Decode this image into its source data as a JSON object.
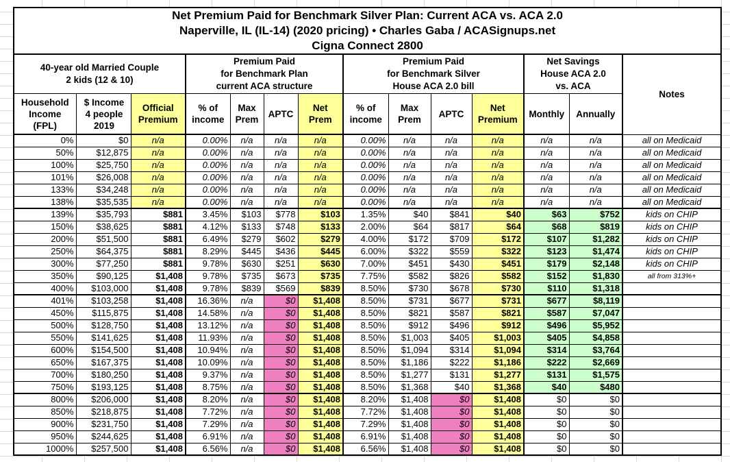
{
  "title": {
    "line1": "Net Premium Paid for Benchmark Silver Plan: Current ACA vs. ACA 2.0",
    "line2": "Naperville, IL (IL-14) (2020 pricing) • Charles Gaba / ACASignups.net",
    "line3": "Cigna Connect 2800"
  },
  "groups": {
    "household": "40-year old Married Couple\n2 kids (12 & 10)",
    "aca_current": "Premium Paid\nfor Benchmark Plan\ncurrent ACA structure",
    "aca_20": "Premium Paid\nfor Benchmark Silver\nHouse ACA 2.0 bill",
    "net_savings": "Net Savings\nHouse ACA 2.0\nvs. ACA",
    "notes": "Notes"
  },
  "columns": [
    "Household\nIncome\n(FPL)",
    "$ Income\n4 people\n2019",
    "Official\nPremium",
    "% of\nincome",
    "Max\nPrem",
    "APTC",
    "Net\nPrem",
    "% of\nincome",
    "Max\nPrem",
    "APTC",
    "Net\nPremium",
    "Monthly",
    "Annually"
  ],
  "colors": {
    "highlight_yellow": "#FFFF99",
    "zeroed_aptc_pink": "#F07FC2",
    "savings_green": "#CCFFCC",
    "household_peach": "#FAC090"
  },
  "rows": [
    {
      "kind": "medicaid",
      "cells": [
        "0%",
        "$0",
        "n/a",
        "0.00%",
        "n/a",
        "n/a",
        "n/a",
        "0.00%",
        "n/a",
        "n/a",
        "n/a",
        "n/a",
        "n/a",
        "all on Medicaid"
      ]
    },
    {
      "kind": "medicaid",
      "cells": [
        "50%",
        "$12,875",
        "n/a",
        "0.00%",
        "n/a",
        "n/a",
        "n/a",
        "0.00%",
        "n/a",
        "n/a",
        "n/a",
        "n/a",
        "n/a",
        "all on Medicaid"
      ]
    },
    {
      "kind": "medicaid",
      "cells": [
        "100%",
        "$25,750",
        "n/a",
        "0.00%",
        "n/a",
        "n/a",
        "n/a",
        "0.00%",
        "n/a",
        "n/a",
        "n/a",
        "n/a",
        "n/a",
        "all on Medicaid"
      ]
    },
    {
      "kind": "medicaid",
      "cells": [
        "101%",
        "$26,008",
        "n/a",
        "0.00%",
        "n/a",
        "n/a",
        "n/a",
        "0.00%",
        "n/a",
        "n/a",
        "n/a",
        "n/a",
        "n/a",
        "all on Medicaid"
      ]
    },
    {
      "kind": "medicaid",
      "cells": [
        "133%",
        "$34,248",
        "n/a",
        "0.00%",
        "n/a",
        "n/a",
        "n/a",
        "0.00%",
        "n/a",
        "n/a",
        "n/a",
        "n/a",
        "n/a",
        "all on Medicaid"
      ]
    },
    {
      "kind": "medicaid",
      "cells": [
        "138%",
        "$35,535",
        "n/a",
        "0.00%",
        "n/a",
        "n/a",
        "n/a",
        "0.00%",
        "n/a",
        "n/a",
        "n/a",
        "n/a",
        "n/a",
        "all on Medicaid"
      ]
    },
    {
      "kind": "subsidized",
      "cells": [
        "139%",
        "$35,793",
        "$881",
        "3.45%",
        "$103",
        "$778",
        "$103",
        "1.35%",
        "$40",
        "$841",
        "$40",
        "$63",
        "$752",
        "kids on CHIP"
      ]
    },
    {
      "kind": "subsidized",
      "cells": [
        "150%",
        "$38,625",
        "$881",
        "4.12%",
        "$133",
        "$748",
        "$133",
        "2.00%",
        "$64",
        "$817",
        "$64",
        "$68",
        "$819",
        "kids on CHIP"
      ]
    },
    {
      "kind": "subsidized",
      "cells": [
        "200%",
        "$51,500",
        "$881",
        "6.49%",
        "$279",
        "$602",
        "$279",
        "4.00%",
        "$172",
        "$709",
        "$172",
        "$107",
        "$1,282",
        "kids on CHIP"
      ]
    },
    {
      "kind": "subsidized",
      "cells": [
        "250%",
        "$64,375",
        "$881",
        "8.29%",
        "$445",
        "$436",
        "$445",
        "6.00%",
        "$322",
        "$559",
        "$322",
        "$123",
        "$1,474",
        "kids on CHIP"
      ]
    },
    {
      "kind": "subsidized",
      "cells": [
        "300%",
        "$77,250",
        "$881",
        "9.78%",
        "$630",
        "$251",
        "$630",
        "7.00%",
        "$451",
        "$430",
        "$451",
        "$179",
        "$2,148",
        "kids on CHIP"
      ]
    },
    {
      "kind": "subsidized",
      "cells": [
        "350%",
        "$90,125",
        "$1,408",
        "9.78%",
        "$735",
        "$673",
        "$735",
        "7.75%",
        "$582",
        "$826",
        "$582",
        "$152",
        "$1,830",
        "all from 313%+"
      ]
    },
    {
      "kind": "subsidized",
      "cells": [
        "400%",
        "$103,000",
        "$1,408",
        "9.78%",
        "$839",
        "$569",
        "$839",
        "8.50%",
        "$730",
        "$678",
        "$730",
        "$110",
        "$1,318",
        ""
      ]
    },
    {
      "kind": "cliff",
      "cells": [
        "401%",
        "$103,258",
        "$1,408",
        "16.36%",
        "n/a",
        "$0",
        "$1,408",
        "8.50%",
        "$731",
        "$677",
        "$731",
        "$677",
        "$8,119",
        ""
      ]
    },
    {
      "kind": "cliff",
      "cells": [
        "450%",
        "$115,875",
        "$1,408",
        "14.58%",
        "n/a",
        "$0",
        "$1,408",
        "8.50%",
        "$821",
        "$587",
        "$821",
        "$587",
        "$7,047",
        ""
      ]
    },
    {
      "kind": "cliff",
      "cells": [
        "500%",
        "$128,750",
        "$1,408",
        "13.12%",
        "n/a",
        "$0",
        "$1,408",
        "8.50%",
        "$912",
        "$496",
        "$912",
        "$496",
        "$5,952",
        ""
      ]
    },
    {
      "kind": "cliff",
      "cells": [
        "550%",
        "$141,625",
        "$1,408",
        "11.93%",
        "n/a",
        "$0",
        "$1,408",
        "8.50%",
        "$1,003",
        "$405",
        "$1,003",
        "$405",
        "$4,858",
        ""
      ]
    },
    {
      "kind": "cliff",
      "cells": [
        "600%",
        "$154,500",
        "$1,408",
        "10.94%",
        "n/a",
        "$0",
        "$1,408",
        "8.50%",
        "$1,094",
        "$314",
        "$1,094",
        "$314",
        "$3,764",
        ""
      ]
    },
    {
      "kind": "cliff",
      "cells": [
        "650%",
        "$167,375",
        "$1,408",
        "10.09%",
        "n/a",
        "$0",
        "$1,408",
        "8.50%",
        "$1,186",
        "$222",
        "$1,186",
        "$222",
        "$2,669",
        ""
      ]
    },
    {
      "kind": "cliff",
      "cells": [
        "700%",
        "$180,250",
        "$1,408",
        "9.37%",
        "n/a",
        "$0",
        "$1,408",
        "8.50%",
        "$1,277",
        "$131",
        "$1,277",
        "$131",
        "$1,575",
        ""
      ]
    },
    {
      "kind": "cliff",
      "cells": [
        "750%",
        "$193,125",
        "$1,408",
        "8.75%",
        "n/a",
        "$0",
        "$1,408",
        "8.50%",
        "$1,368",
        "$40",
        "$1,368",
        "$40",
        "$480",
        ""
      ]
    },
    {
      "kind": "high",
      "cells": [
        "800%",
        "$206,000",
        "$1,408",
        "8.20%",
        "n/a",
        "$0",
        "$1,408",
        "8.20%",
        "$1,408",
        "$0",
        "$1,408",
        "$0",
        "$0",
        ""
      ]
    },
    {
      "kind": "high",
      "cells": [
        "850%",
        "$218,875",
        "$1,408",
        "7.72%",
        "n/a",
        "$0",
        "$1,408",
        "7.72%",
        "$1,408",
        "$0",
        "$1,408",
        "$0",
        "$0",
        ""
      ]
    },
    {
      "kind": "high",
      "cells": [
        "900%",
        "$231,750",
        "$1,408",
        "7.29%",
        "n/a",
        "$0",
        "$1,408",
        "7.29%",
        "$1,408",
        "$0",
        "$1,408",
        "$0",
        "$0",
        ""
      ]
    },
    {
      "kind": "high",
      "cells": [
        "950%",
        "$244,625",
        "$1,408",
        "6.91%",
        "n/a",
        "$0",
        "$1,408",
        "6.91%",
        "$1,408",
        "$0",
        "$1,408",
        "$0",
        "$0",
        ""
      ]
    },
    {
      "kind": "high",
      "cells": [
        "1000%",
        "$257,500",
        "$1,408",
        "6.56%",
        "n/a",
        "$0",
        "$1,408",
        "6.56%",
        "$1,408",
        "$0",
        "$1,408",
        "$0",
        "$0",
        ""
      ]
    }
  ]
}
